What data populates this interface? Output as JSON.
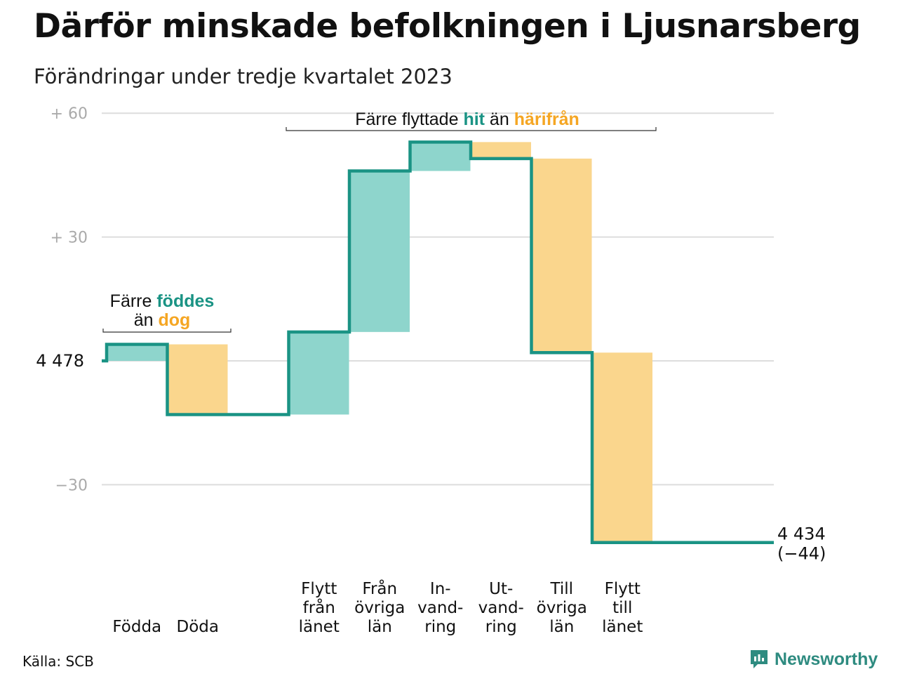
{
  "title": "Därför minskade befolkningen i Ljusnarsberg",
  "subtitle": "Förändringar under tredje kvartalet 2023",
  "source": "Källa: SCB",
  "brand": "Newsworthy",
  "colors": {
    "increase": "#8ed5cc",
    "decrease": "#fad68d",
    "line": "#1a9384",
    "teal_text": "#1a9384",
    "orange_text": "#f5a623",
    "grid": "#dddddd",
    "tick": "#aaaaaa"
  },
  "chart_data": {
    "type": "bar",
    "subtype": "waterfall",
    "start_value": 4478,
    "end_value": 4434,
    "start_label": "4  478",
    "end_label": "4 434",
    "end_change_label": "(−44)",
    "ylim": [
      -44,
      60
    ],
    "y_ticks": [
      {
        "value": 60,
        "label": "+  60"
      },
      {
        "value": 30,
        "label": "+  30"
      },
      {
        "value": 0,
        "label": ""
      },
      {
        "value": -30,
        "label": "−30"
      }
    ],
    "grid": true,
    "steps": [
      {
        "label_lines": [
          "Födda"
        ],
        "value": 4,
        "kind": "increase"
      },
      {
        "label_lines": [
          "Döda"
        ],
        "value": -17,
        "kind": "decrease"
      },
      {
        "label_lines": [],
        "value": 0,
        "kind": "gap"
      },
      {
        "label_lines": [
          "Flytt",
          "från",
          "länet"
        ],
        "value": 20,
        "kind": "increase"
      },
      {
        "label_lines": [
          "Från",
          "övriga",
          "län"
        ],
        "value": 39,
        "kind": "increase"
      },
      {
        "label_lines": [
          "In-",
          "vand-",
          "ring"
        ],
        "value": 7,
        "kind": "increase"
      },
      {
        "label_lines": [
          "Ut-",
          "vand-",
          "ring"
        ],
        "value": -4,
        "kind": "decrease"
      },
      {
        "label_lines": [
          "Till",
          "övriga",
          "län"
        ],
        "value": -47,
        "kind": "decrease"
      },
      {
        "label_lines": [
          "Flytt",
          "till",
          "länet"
        ],
        "value": -46,
        "kind": "decrease"
      }
    ],
    "annotations": [
      {
        "id": "births",
        "line1": [
          {
            "text": "Färre ",
            "style": "normal"
          },
          {
            "text": "föddes",
            "style": "teal"
          }
        ],
        "line2": [
          {
            "text": "än ",
            "style": "normal"
          },
          {
            "text": "dog",
            "style": "orange"
          }
        ],
        "from_step": 0,
        "to_step": 1
      },
      {
        "id": "moves",
        "line1": [
          {
            "text": "Färre flyttade ",
            "style": "normal"
          },
          {
            "text": "hit",
            "style": "teal"
          },
          {
            "text": "  än ",
            "style": "normal"
          },
          {
            "text": "härifrån",
            "style": "orange"
          }
        ],
        "line2": [],
        "from_step": 3,
        "to_step": 8
      }
    ]
  }
}
